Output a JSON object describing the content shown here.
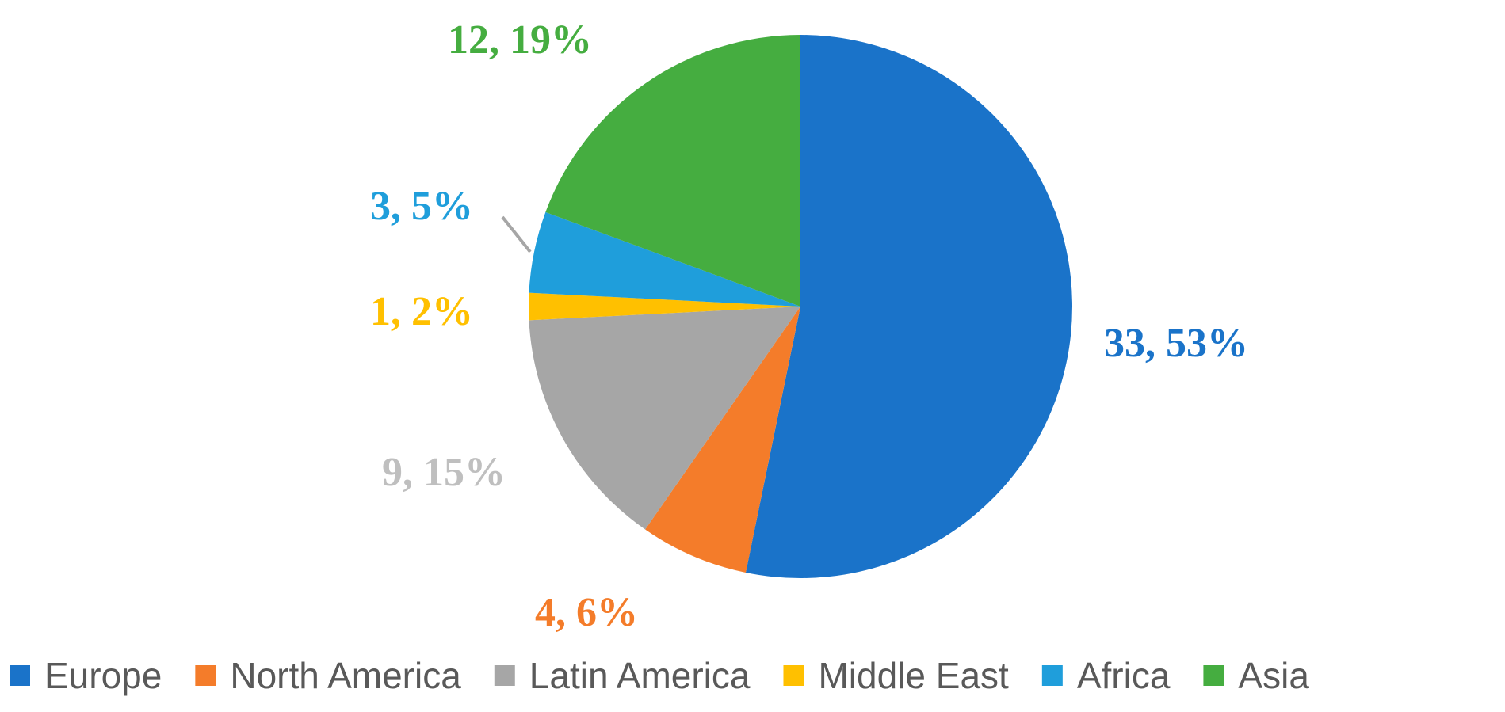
{
  "chart_data": {
    "type": "pie",
    "title": "",
    "legend_position": "bottom",
    "slices": [
      {
        "name": "Europe",
        "value": 33,
        "percent": "53%",
        "color": "#1a73c9"
      },
      {
        "name": "North America",
        "value": 4,
        "percent": "6%",
        "color": "#f47c2a"
      },
      {
        "name": "Latin America",
        "value": 9,
        "percent": "15%",
        "color": "#a6a6a6"
      },
      {
        "name": "Middle East",
        "value": 1,
        "percent": "2%",
        "color": "#ffc000"
      },
      {
        "name": "Africa",
        "value": 3,
        "percent": "5%",
        "color": "#1f9edb"
      },
      {
        "name": "Asia",
        "value": 12,
        "percent": "19%",
        "color": "#45ad40"
      }
    ],
    "data_labels": [
      {
        "slice": "Europe",
        "text": "33, 53%",
        "color": "#1a73c9"
      },
      {
        "slice": "North America",
        "text": "4, 6%",
        "color": "#f47c2a"
      },
      {
        "slice": "Latin America",
        "text": "9, 15%",
        "color": "#bfbfbf"
      },
      {
        "slice": "Middle East",
        "text": "1, 2%",
        "color": "#ffc000"
      },
      {
        "slice": "Africa",
        "text": "3, 5%",
        "color": "#1f9edb"
      },
      {
        "slice": "Asia",
        "text": "12, 19%",
        "color": "#45ad40"
      }
    ]
  }
}
